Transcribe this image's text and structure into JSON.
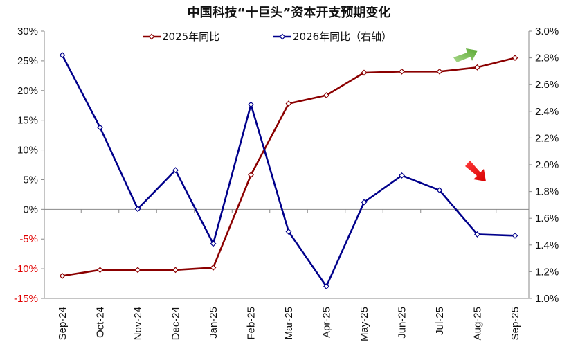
{
  "chart_data": {
    "type": "line",
    "title": "中国科技“十巨头”资本开支预期变化",
    "categories": [
      "Sep-24",
      "Oct-24",
      "Nov-24",
      "Dec-24",
      "Jan-25",
      "Feb-25",
      "Mar-25",
      "Apr-25",
      "May-25",
      "Jun-25",
      "Jul-25",
      "Aug-25",
      "Sep-25"
    ],
    "series": [
      {
        "name": "2025年同比",
        "axis": "left",
        "color": "#8b0000",
        "values": [
          -11.2,
          -10.2,
          -10.2,
          -10.2,
          -9.8,
          5.8,
          17.8,
          19.2,
          23.0,
          23.2,
          23.2,
          23.9,
          25.5
        ]
      },
      {
        "name": "2026年同比（右轴）",
        "axis": "right",
        "color": "#00008b",
        "values": [
          2.82,
          2.28,
          1.67,
          1.96,
          1.41,
          2.45,
          1.5,
          1.09,
          1.72,
          1.92,
          1.81,
          1.48,
          1.47
        ]
      }
    ],
    "y_left": {
      "range": [
        -15,
        30
      ],
      "ticks": [
        "30%",
        "25%",
        "20%",
        "15%",
        "10%",
        "5%",
        "0%",
        "-5%",
        "-10%",
        "-15%"
      ]
    },
    "y_right": {
      "range": [
        1.0,
        3.0
      ],
      "ticks": [
        "3.0%",
        "2.8%",
        "2.6%",
        "2.4%",
        "2.2%",
        "2.0%",
        "1.8%",
        "1.6%",
        "1.4%",
        "1.2%",
        "1.0%"
      ]
    },
    "grid": false,
    "legend": "top",
    "annotations": [
      {
        "type": "arrow-up",
        "color": "#7dc242"
      },
      {
        "type": "arrow-down",
        "color": "#e00000"
      }
    ],
    "negative_tick_color": "#e00000"
  }
}
